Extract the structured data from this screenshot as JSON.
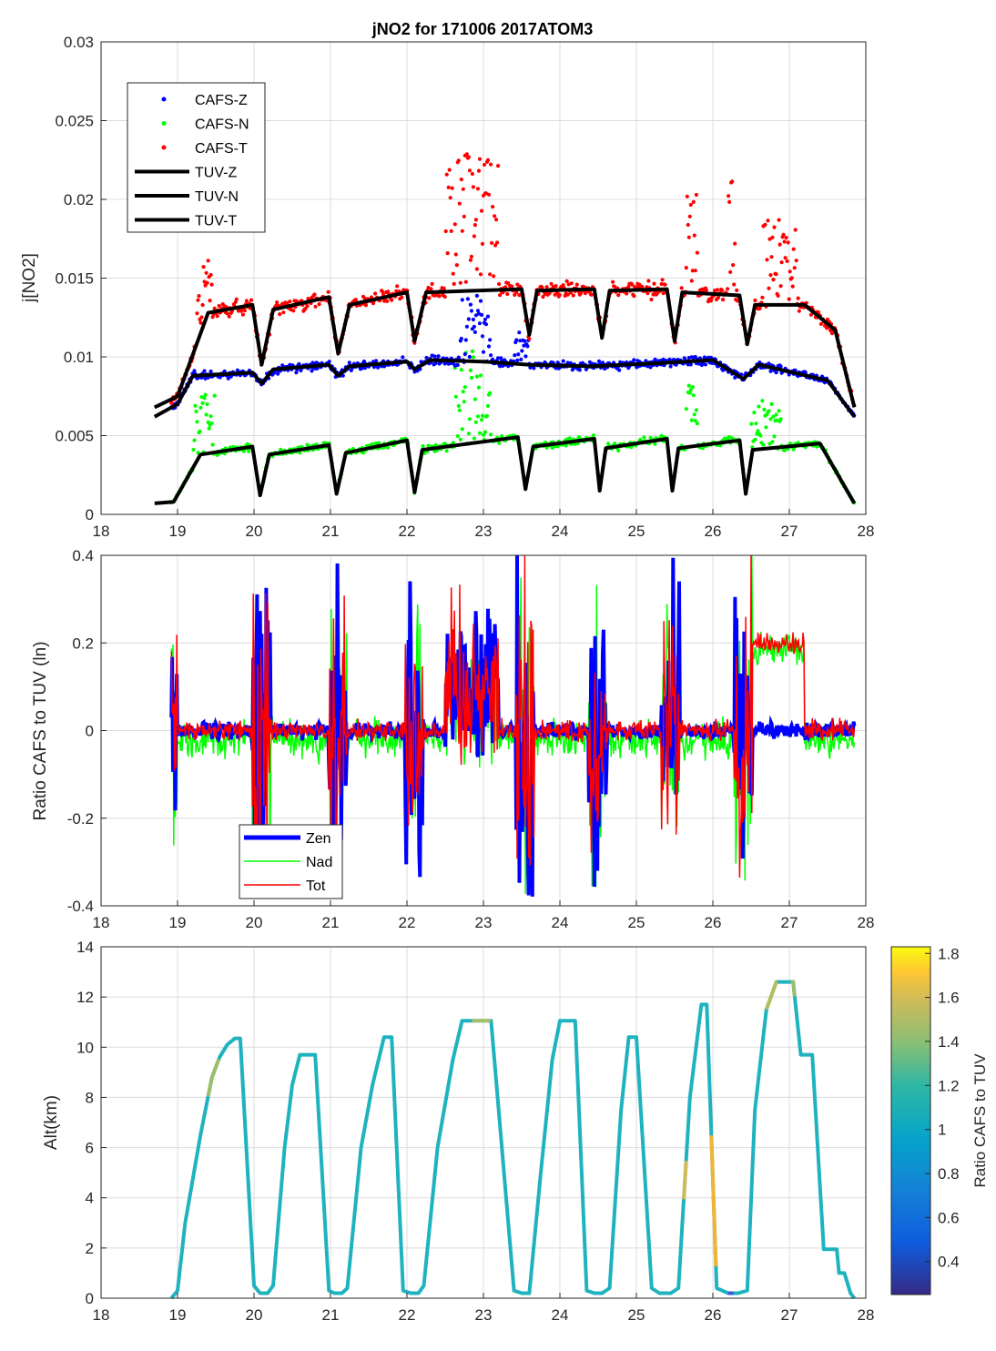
{
  "figure": {
    "title": "jNO2 for 171006 2017ATOM3"
  },
  "chart_data": [
    {
      "type": "scatter",
      "name": "jNO2 time series",
      "title": "jNO2 for 171006 2017ATOM3",
      "xlabel": "",
      "ylabel": "j[NO2]",
      "xlim": [
        18,
        28
      ],
      "ylim": [
        0,
        0.03
      ],
      "xticks": [
        "18",
        "19",
        "20",
        "21",
        "22",
        "23",
        "24",
        "25",
        "26",
        "27",
        "28"
      ],
      "yticks": [
        "0",
        "0.005",
        "0.01",
        "0.015",
        "0.02",
        "0.025",
        "0.03"
      ],
      "grid": true,
      "legend_position": "top-left",
      "legend": [
        "CAFS-Z",
        "CAFS-N",
        "CAFS-T",
        "TUV-Z",
        "TUV-N",
        "TUV-T"
      ],
      "series_colors": {
        "CAFS-Z": "#0000ff",
        "CAFS-N": "#00ff00",
        "CAFS-T": "#ff0000",
        "TUV": "#000000"
      },
      "dips": [
        20.1,
        21.1,
        22.1,
        23.55,
        24.5,
        25.45,
        26.4
      ],
      "series": [
        {
          "name": "TUV-T",
          "x": [
            18.7,
            19.0,
            19.4,
            19.98,
            20.1,
            20.25,
            20.98,
            21.1,
            21.25,
            22.0,
            22.1,
            22.25,
            23.5,
            23.6,
            23.7,
            24.45,
            24.55,
            24.65,
            25.4,
            25.5,
            25.6,
            26.35,
            26.45,
            26.55,
            27.2,
            27.6,
            27.85
          ],
          "y": [
            0.0068,
            0.0075,
            0.0128,
            0.0133,
            0.0095,
            0.013,
            0.0138,
            0.0102,
            0.0133,
            0.0141,
            0.011,
            0.0141,
            0.0143,
            0.0114,
            0.0142,
            0.0143,
            0.0112,
            0.0142,
            0.0143,
            0.011,
            0.0141,
            0.0139,
            0.0108,
            0.0133,
            0.0133,
            0.0117,
            0.0068
          ]
        },
        {
          "name": "TUV-Z",
          "x": [
            18.7,
            19.0,
            19.2,
            19.98,
            20.1,
            20.25,
            20.98,
            21.1,
            21.25,
            22.0,
            22.1,
            22.3,
            23.0,
            23.6,
            24.4,
            25.3,
            26.0,
            26.4,
            26.6,
            27.5,
            27.85
          ],
          "y": [
            0.0062,
            0.007,
            0.0088,
            0.009,
            0.0083,
            0.0092,
            0.0095,
            0.0088,
            0.0094,
            0.0097,
            0.0092,
            0.0098,
            0.0097,
            0.0095,
            0.0094,
            0.0096,
            0.0098,
            0.0086,
            0.0095,
            0.0085,
            0.0062
          ]
        },
        {
          "name": "TUV-N",
          "x": [
            18.7,
            18.95,
            19.3,
            19.98,
            20.08,
            20.2,
            20.98,
            21.08,
            21.2,
            22.0,
            22.1,
            22.2,
            23.45,
            23.55,
            23.65,
            24.45,
            24.52,
            24.6,
            25.4,
            25.47,
            25.55,
            26.35,
            26.43,
            26.52,
            27.4,
            27.85
          ],
          "y": [
            0.0007,
            0.0008,
            0.0038,
            0.0043,
            0.0012,
            0.0038,
            0.0044,
            0.0013,
            0.0039,
            0.0047,
            0.0014,
            0.0041,
            0.0049,
            0.0016,
            0.0043,
            0.0048,
            0.0015,
            0.0042,
            0.0048,
            0.0015,
            0.0042,
            0.0047,
            0.0013,
            0.0041,
            0.0045,
            0.0007
          ]
        }
      ]
    },
    {
      "type": "line",
      "name": "ratio",
      "ylabel": "Ratio CAFS to TUV (ln)",
      "xlim": [
        18,
        28
      ],
      "ylim": [
        -0.4,
        0.4
      ],
      "xticks": [
        "18",
        "19",
        "20",
        "21",
        "22",
        "23",
        "24",
        "25",
        "26",
        "27",
        "28"
      ],
      "yticks": [
        "-0.4",
        "-0.2",
        "0",
        "0.2",
        "0.4"
      ],
      "grid": true,
      "legend_position": "bottom-left",
      "legend": [
        "Zen",
        "Nad",
        "Tot"
      ],
      "series_colors": {
        "Zen": "#0000ff",
        "Nad": "#00ff00",
        "Tot": "#ff0000"
      },
      "notes": "noisy ratio traces, clipped to axis limits"
    },
    {
      "type": "line",
      "name": "altitude",
      "ylabel": "Alt(km)",
      "xlim": [
        18,
        28
      ],
      "ylim": [
        0,
        14
      ],
      "xticks": [
        "18",
        "19",
        "20",
        "21",
        "22",
        "23",
        "24",
        "25",
        "26",
        "27",
        "28"
      ],
      "yticks": [
        "0",
        "2",
        "4",
        "6",
        "8",
        "10",
        "12",
        "14"
      ],
      "grid": true,
      "colorbar": {
        "label": "Ratio CAFS to TUV",
        "limits": [
          0.25,
          1.83
        ],
        "ticks": [
          "0.4",
          "0.6",
          "0.8",
          "1",
          "1.2",
          "1.4",
          "1.6",
          "1.8"
        ],
        "colormap": "parula"
      },
      "x": [
        18.92,
        19.0,
        19.1,
        19.3,
        19.45,
        19.55,
        19.65,
        19.75,
        19.82,
        20.0,
        20.08,
        20.18,
        20.25,
        20.4,
        20.5,
        20.6,
        20.65,
        20.8,
        20.98,
        21.05,
        21.15,
        21.22,
        21.4,
        21.55,
        21.7,
        21.8,
        21.95,
        22.05,
        22.15,
        22.22,
        22.4,
        22.6,
        22.72,
        22.85,
        23.1,
        23.4,
        23.5,
        23.6,
        23.75,
        23.9,
        24.0,
        24.2,
        24.35,
        24.45,
        24.55,
        24.65,
        24.8,
        24.9,
        25.0,
        25.2,
        25.3,
        25.45,
        25.55,
        25.7,
        25.85,
        25.92,
        26.05,
        26.2,
        26.33,
        26.45,
        26.55,
        26.7,
        26.83,
        26.88,
        27.05,
        27.15,
        27.3,
        27.4,
        27.45,
        27.62,
        27.65,
        27.72,
        27.8,
        27.85
      ],
      "y": [
        0,
        0.3,
        3,
        6.5,
        8.8,
        9.6,
        10.1,
        10.35,
        10.35,
        0.5,
        0.2,
        0.2,
        0.5,
        6,
        8.5,
        9.7,
        9.7,
        9.7,
        0.3,
        0.2,
        0.2,
        0.4,
        6,
        8.5,
        10.4,
        10.4,
        0.3,
        0.2,
        0.2,
        0.5,
        6,
        9.5,
        11.05,
        11.05,
        11.05,
        0.3,
        0.2,
        0.2,
        5,
        9.5,
        11.05,
        11.05,
        0.3,
        0.2,
        0.2,
        0.4,
        7.5,
        10.4,
        10.4,
        0.4,
        0.2,
        0.2,
        0.4,
        8,
        11.7,
        11.7,
        0.4,
        0.2,
        0.2,
        0.3,
        7.5,
        11.5,
        12.6,
        12.6,
        12.6,
        9.7,
        9.7,
        4.5,
        1.95,
        1.95,
        1.0,
        1.0,
        0.2,
        0
      ]
    }
  ]
}
